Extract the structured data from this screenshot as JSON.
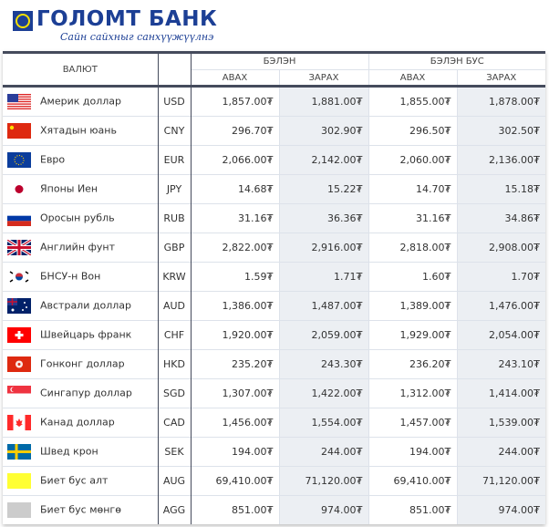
{
  "logo": {
    "name": "ГОЛОМТ БАНК",
    "slogan": "Сайн сайхныг санхүүжүүлнэ",
    "color": "#1c3f95"
  },
  "table": {
    "headers": {
      "currency": "ВАЛЮТ",
      "cash": "БЭЛЭН",
      "noncash": "БЭЛЭН БУС",
      "buy": "АВАХ",
      "sell": "ЗАРАХ"
    },
    "rows": [
      {
        "flag": "us-flag",
        "name": "Америк доллар",
        "code": "USD",
        "cash_buy": "1,857.00₮",
        "cash_sell": "1,881.00₮",
        "noncash_buy": "1,855.00₮",
        "noncash_sell": "1,878.00₮"
      },
      {
        "flag": "cn-flag",
        "name": "Хятадын юань",
        "code": "CNY",
        "cash_buy": "296.70₮",
        "cash_sell": "302.90₮",
        "noncash_buy": "296.50₮",
        "noncash_sell": "302.50₮"
      },
      {
        "flag": "eu-flag",
        "name": "Евро",
        "code": "EUR",
        "cash_buy": "2,066.00₮",
        "cash_sell": "2,142.00₮",
        "noncash_buy": "2,060.00₮",
        "noncash_sell": "2,136.00₮"
      },
      {
        "flag": "jp-flag",
        "name": "Японы Иен",
        "code": "JPY",
        "cash_buy": "14.68₮",
        "cash_sell": "15.22₮",
        "noncash_buy": "14.70₮",
        "noncash_sell": "15.18₮"
      },
      {
        "flag": "ru-flag",
        "name": "Оросын рубль",
        "code": "RUB",
        "cash_buy": "31.16₮",
        "cash_sell": "36.36₮",
        "noncash_buy": "31.16₮",
        "noncash_sell": "34.86₮"
      },
      {
        "flag": "gb-flag",
        "name": "Английн фунт",
        "code": "GBP",
        "cash_buy": "2,822.00₮",
        "cash_sell": "2,916.00₮",
        "noncash_buy": "2,818.00₮",
        "noncash_sell": "2,908.00₮"
      },
      {
        "flag": "kr-flag",
        "name": "БНСУ-н Вон",
        "code": "KRW",
        "cash_buy": "1.59₮",
        "cash_sell": "1.71₮",
        "noncash_buy": "1.60₮",
        "noncash_sell": "1.70₮"
      },
      {
        "flag": "au-flag",
        "name": "Австрали доллар",
        "code": "AUD",
        "cash_buy": "1,386.00₮",
        "cash_sell": "1,487.00₮",
        "noncash_buy": "1,389.00₮",
        "noncash_sell": "1,476.00₮"
      },
      {
        "flag": "ch-flag",
        "name": "Швейцарь франк",
        "code": "CHF",
        "cash_buy": "1,920.00₮",
        "cash_sell": "2,059.00₮",
        "noncash_buy": "1,929.00₮",
        "noncash_sell": "2,054.00₮"
      },
      {
        "flag": "hk-flag",
        "name": "Гонконг доллар",
        "code": "HKD",
        "cash_buy": "235.20₮",
        "cash_sell": "243.30₮",
        "noncash_buy": "236.20₮",
        "noncash_sell": "243.10₮"
      },
      {
        "flag": "sg-flag",
        "name": "Сингапур доллар",
        "code": "SGD",
        "cash_buy": "1,307.00₮",
        "cash_sell": "1,422.00₮",
        "noncash_buy": "1,312.00₮",
        "noncash_sell": "1,414.00₮"
      },
      {
        "flag": "ca-flag",
        "name": "Канад доллар",
        "code": "CAD",
        "cash_buy": "1,456.00₮",
        "cash_sell": "1,554.00₮",
        "noncash_buy": "1,457.00₮",
        "noncash_sell": "1,539.00₮"
      },
      {
        "flag": "se-flag",
        "name": "Швед крон",
        "code": "SEK",
        "cash_buy": "194.00₮",
        "cash_sell": "244.00₮",
        "noncash_buy": "194.00₮",
        "noncash_sell": "244.00₮"
      },
      {
        "flag": "gold-swatch",
        "name": "Биет бус алт",
        "code": "AUG",
        "cash_buy": "69,410.00₮",
        "cash_sell": "71,120.00₮",
        "noncash_buy": "69,410.00₮",
        "noncash_sell": "71,120.00₮"
      },
      {
        "flag": "silver-swatch",
        "name": "Биет бус мөнгө",
        "code": "AGG",
        "cash_buy": "851.00₮",
        "cash_sell": "974.00₮",
        "noncash_buy": "851.00₮",
        "noncash_sell": "974.00₮"
      }
    ]
  },
  "colors": {
    "header_border": "#454b5c",
    "alt_column": "#eceff3",
    "gold": "#ffff33",
    "silver": "#cccccc"
  }
}
